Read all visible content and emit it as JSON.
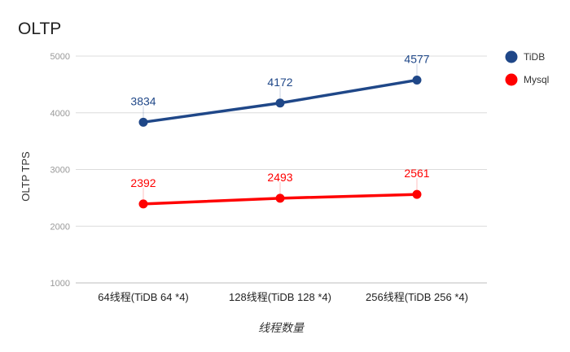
{
  "chart_data": {
    "type": "line",
    "title": "OLTP",
    "xlabel": "线程数量",
    "ylabel": "OLTP TPS",
    "categories": [
      "64线程(TiDB 64 *4)",
      "128线程(TiDB 128 *4)",
      "256线程(TiDB 256 *4)"
    ],
    "yticks": [
      1000,
      2000,
      3000,
      4000,
      5000
    ],
    "ylim": [
      1000,
      5000
    ],
    "grid": true,
    "legend": "right",
    "series": [
      {
        "name": "TiDB",
        "color": "#1f4788",
        "values": [
          3834,
          4172,
          4577
        ],
        "labels": [
          "3834",
          "4172",
          "4577"
        ]
      },
      {
        "name": "Mysql",
        "color": "#ff0000",
        "values": [
          2392,
          2493,
          2561
        ],
        "labels": [
          "2392",
          "2493",
          "2561"
        ]
      }
    ]
  }
}
